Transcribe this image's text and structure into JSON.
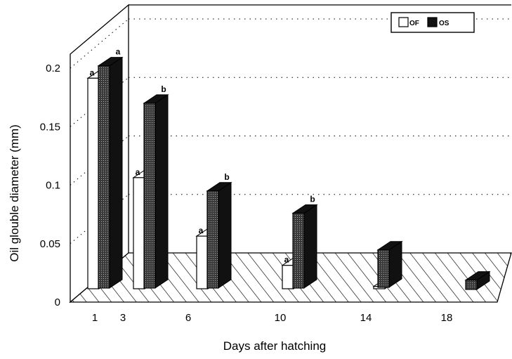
{
  "chart_data": {
    "type": "bar",
    "title": "",
    "xlabel": "Days after hatching",
    "ylabel": "Oil glouble diameter (mm)",
    "ylim": [
      0,
      0.2
    ],
    "yticks": [
      "0",
      "0.05",
      "0.1",
      "0.15",
      "0.2"
    ],
    "categories": [
      "1",
      "3",
      "6",
      "10",
      "14",
      "18"
    ],
    "grid": "dotted horizontal on back wall",
    "legend_position": "top-right",
    "three_d": true,
    "series": [
      {
        "name": "OF",
        "values": [
          0.18,
          0.095,
          0.045,
          0.02,
          0.002,
          null
        ],
        "labels": [
          "a",
          "a",
          "a",
          "a",
          "",
          ""
        ],
        "color": "#ffffff"
      },
      {
        "name": "OS",
        "values": [
          0.19,
          0.158,
          0.083,
          0.064,
          0.032,
          0.008
        ],
        "labels": [
          "a",
          "b",
          "b",
          "b",
          "",
          ""
        ],
        "color": "#2b2b2b"
      }
    ]
  }
}
